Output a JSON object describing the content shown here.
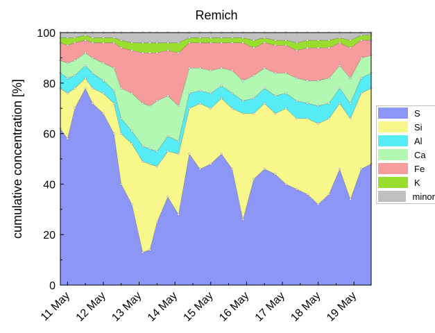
{
  "chart_data": {
    "type": "area",
    "stacked": true,
    "title": "Remich",
    "ylabel": "cumulative concentration [%]",
    "xlabel": "",
    "ylim": [
      0,
      100
    ],
    "yticks": [
      0,
      20,
      40,
      60,
      80,
      100
    ],
    "xlim": [
      10.8,
      19.48
    ],
    "xticks": [
      {
        "value": 11,
        "label": "11 May"
      },
      {
        "value": 12,
        "label": "12 May"
      },
      {
        "value": 13,
        "label": "13 May"
      },
      {
        "value": 14,
        "label": "14 May"
      },
      {
        "value": 15,
        "label": "15 May"
      },
      {
        "value": 16,
        "label": "16 May"
      },
      {
        "value": 17,
        "label": "17 May"
      },
      {
        "value": 18,
        "label": "18 May"
      },
      {
        "value": 19,
        "label": "19 May"
      }
    ],
    "x": [
      10.8,
      11.0,
      11.2,
      11.5,
      11.7,
      12.0,
      12.3,
      12.5,
      12.8,
      13.1,
      13.3,
      13.5,
      13.8,
      14.1,
      14.4,
      14.7,
      15.0,
      15.3,
      15.6,
      15.9,
      16.2,
      16.5,
      16.8,
      17.1,
      17.4,
      17.7,
      18.0,
      18.3,
      18.6,
      18.9,
      19.2,
      19.48
    ],
    "series": [
      {
        "name": "S",
        "color": "#8c96f7",
        "values": [
          62,
          58,
          70,
          78,
          72,
          68,
          60,
          40,
          32,
          13,
          14,
          25,
          35,
          28,
          52,
          46,
          48,
          52,
          46,
          26,
          42,
          46,
          44,
          40,
          38,
          36,
          32,
          36,
          46,
          34,
          46,
          48
        ]
      },
      {
        "name": "Si",
        "color": "#f7f78c",
        "values": [
          16,
          18,
          8,
          4,
          6,
          8,
          12,
          20,
          24,
          36,
          34,
          22,
          18,
          24,
          18,
          26,
          22,
          22,
          24,
          42,
          26,
          26,
          24,
          30,
          28,
          30,
          32,
          30,
          26,
          32,
          30,
          30
        ]
      },
      {
        "name": "Al",
        "color": "#55ecf6",
        "values": [
          6,
          6,
          5,
          5,
          6,
          5,
          5,
          6,
          5,
          6,
          6,
          6,
          6,
          5,
          6,
          5,
          6,
          5,
          6,
          5,
          6,
          6,
          7,
          6,
          7,
          6,
          7,
          6,
          6,
          6,
          6,
          6
        ]
      },
      {
        "name": "Ca",
        "color": "#b2f7b2",
        "values": [
          5,
          6,
          6,
          5,
          6,
          7,
          9,
          12,
          15,
          17,
          17,
          20,
          16,
          14,
          10,
          9,
          9,
          7,
          9,
          8,
          9,
          8,
          9,
          8,
          9,
          9,
          10,
          10,
          9,
          10,
          8,
          7
        ]
      },
      {
        "name": "Fe",
        "color": "#f79c9c",
        "values": [
          7,
          7,
          7,
          5,
          6,
          8,
          10,
          16,
          17,
          20,
          21,
          19,
          18,
          21,
          10,
          10,
          11,
          10,
          11,
          15,
          11,
          10,
          11,
          11,
          11,
          13,
          13,
          12,
          9,
          12,
          7,
          6
        ]
      },
      {
        "name": "K",
        "color": "#99dd2e",
        "values": [
          2,
          3,
          2,
          2,
          2,
          2,
          2,
          3,
          3,
          4,
          4,
          4,
          3,
          4,
          2,
          2,
          2,
          2,
          2,
          2,
          3,
          2,
          2,
          2,
          3,
          3,
          3,
          3,
          2,
          3,
          2,
          2
        ]
      },
      {
        "name": "minor",
        "color": "#c0c0c0",
        "values": [
          2,
          2,
          2,
          1,
          2,
          2,
          2,
          3,
          4,
          4,
          4,
          4,
          4,
          4,
          2,
          2,
          2,
          2,
          2,
          2,
          3,
          2,
          3,
          3,
          4,
          3,
          3,
          3,
          2,
          3,
          1,
          1
        ]
      }
    ],
    "legend_position": "right",
    "grid": false
  }
}
